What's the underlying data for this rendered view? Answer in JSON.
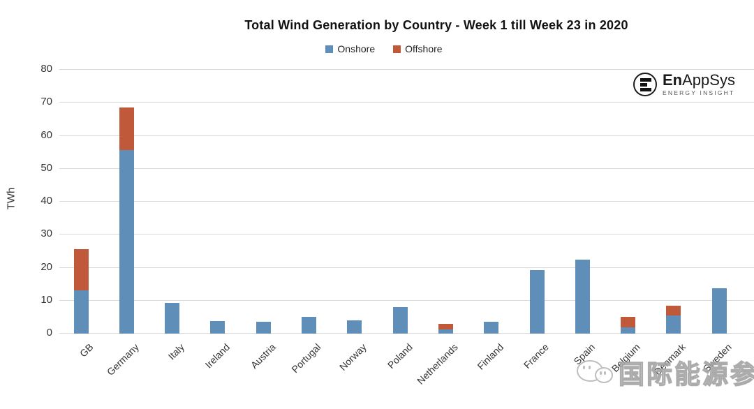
{
  "title": "Total Wind Generation by Country - Week 1 till Week 23 in 2020",
  "y_axis": {
    "label": "TWh",
    "ticks": [
      "0",
      "10",
      "20",
      "30",
      "40",
      "50",
      "60",
      "70",
      "80"
    ]
  },
  "legend": {
    "items": [
      {
        "label": "Onshore",
        "color": "#5f8fb9"
      },
      {
        "label": "Offshore",
        "color": "#c0593a"
      }
    ]
  },
  "logo": {
    "brand_bold": "En",
    "brand_rest": "AppSys",
    "tagline": "ENERGY INSIGHT"
  },
  "watermark": {
    "text": "国际能源参考"
  },
  "chart_data": {
    "type": "bar",
    "stacked": true,
    "title": "Total Wind Generation by Country - Week 1 till Week 23 in 2020",
    "categories": [
      "GB",
      "Germany",
      "Italy",
      "Ireland",
      "Austria",
      "Portugal",
      "Norway",
      "Poland",
      "Netherlands",
      "Finland",
      "France",
      "Spain",
      "Belgium",
      "Denmark",
      "Sweden"
    ],
    "series": [
      {
        "name": "Onshore",
        "color": "#5f8fb9",
        "values": [
          13.2,
          55.7,
          9.4,
          3.9,
          3.7,
          5.1,
          4.1,
          8.0,
          1.2,
          3.5,
          19.2,
          22.5,
          2.0,
          5.5,
          13.7
        ]
      },
      {
        "name": "Offshore",
        "color": "#c0593a",
        "values": [
          12.4,
          12.9,
          0,
          0,
          0,
          0,
          0,
          0,
          1.8,
          0,
          0,
          0,
          3.0,
          2.9,
          0
        ]
      }
    ],
    "totals": [
      25.6,
      68.6,
      9.4,
      3.9,
      3.7,
      5.1,
      4.1,
      8.0,
      3.0,
      3.5,
      19.2,
      22.5,
      5.0,
      8.4,
      13.7
    ],
    "xlabel": "",
    "ylabel": "TWh",
    "ylim": [
      0,
      80
    ],
    "ytick_step": 10,
    "grid": true,
    "legend_position": "top"
  }
}
